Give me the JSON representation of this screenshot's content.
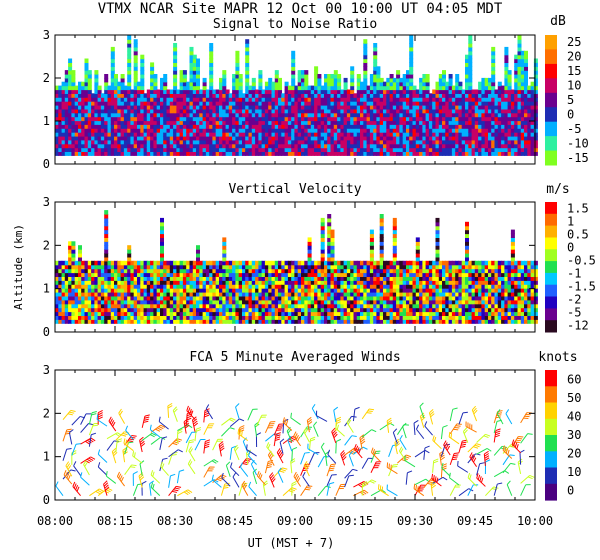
{
  "header": {
    "title": "VTMX  NCAR Site  MAPR 12 Oct 00  10:00 UT  04:05  MDT"
  },
  "x_axis": {
    "ticks": [
      "08:00",
      "08:15",
      "08:30",
      "08:45",
      "09:00",
      "09:15",
      "09:30",
      "09:45",
      "10:00"
    ],
    "label": "UT  (MST + 7)"
  },
  "chart_data": [
    {
      "type": "heatmap",
      "title": "Signal to Noise Ratio",
      "unit": "dB",
      "xlim": [
        0,
        120
      ],
      "ylim": [
        0,
        3
      ],
      "y_ticks": [
        "0",
        "1",
        "2",
        "3"
      ],
      "colorbar_labels": [
        "25",
        "20",
        "15",
        "10",
        "5",
        "0",
        "-5",
        "-10",
        "-15"
      ],
      "colorbar_colors": [
        "#ffa000",
        "#ff6f00",
        "#ff0000",
        "#c80064",
        "#6a008f",
        "#1e2db4",
        "#00b0ff",
        "#2ef0a0",
        "#80ff20"
      ]
    },
    {
      "type": "heatmap",
      "title": "Vertical Velocity",
      "unit": "m/s",
      "ylabel": "Altitude (km)",
      "xlim": [
        0,
        120
      ],
      "ylim": [
        0,
        3
      ],
      "y_ticks": [
        "0",
        "1",
        "2",
        "3"
      ],
      "colorbar_labels": [
        "1.5",
        "1",
        "0.5",
        "0",
        "-0.5",
        "-1",
        "-1.5",
        "-2",
        "-5",
        "-12"
      ],
      "colorbar_colors": [
        "#ff0000",
        "#ff6a00",
        "#ffb000",
        "#ffff00",
        "#a0ff20",
        "#20e050",
        "#00c8ff",
        "#2060ff",
        "#2000c0",
        "#6a008f",
        "#2a0a20"
      ]
    },
    {
      "type": "scatter",
      "title": "FCA 5 Minute Averaged Winds",
      "unit": "knots",
      "xlim": [
        0,
        120
      ],
      "ylim": [
        0,
        3
      ],
      "y_ticks": [
        "0",
        "1",
        "2",
        "3"
      ],
      "colorbar_labels": [
        "60",
        "50",
        "40",
        "30",
        "20",
        "10",
        "0"
      ],
      "colorbar_colors": [
        "#ff0000",
        "#ff7a00",
        "#ffd200",
        "#c8ff20",
        "#20e050",
        "#00b0ff",
        "#1e2db4",
        "#4a0080"
      ]
    }
  ]
}
